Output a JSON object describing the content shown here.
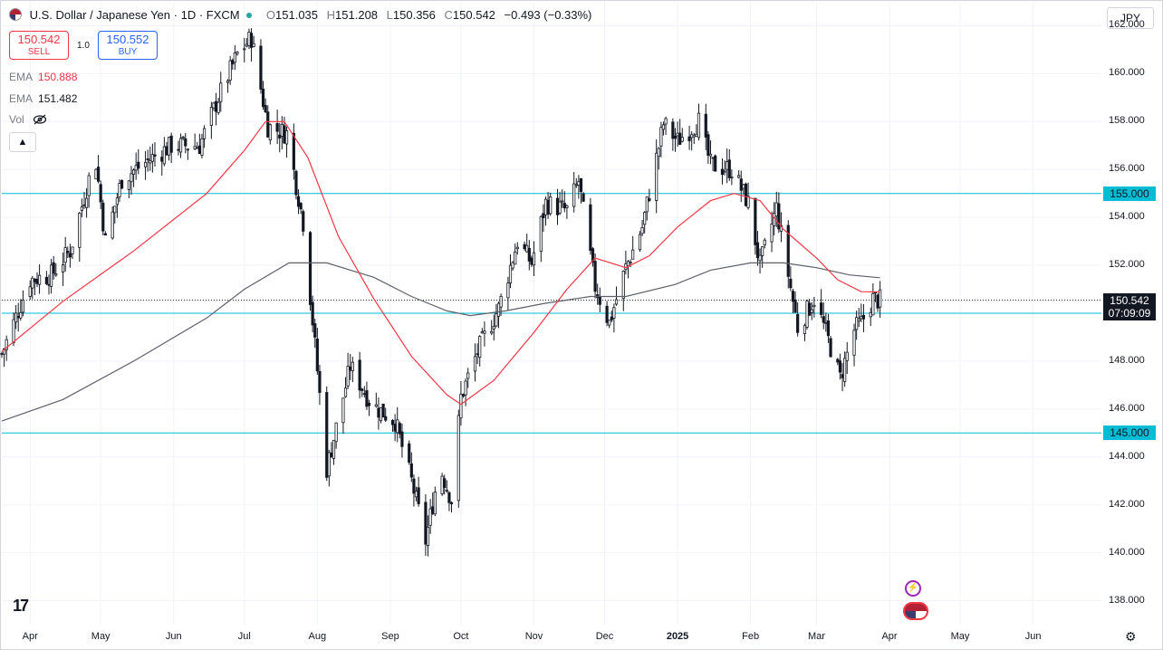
{
  "header": {
    "symbol": "U.S. Dollar / Japanese Yen",
    "interval": "1D",
    "exchange": "FXCM",
    "open_label": "O",
    "open": "151.035",
    "high_label": "H",
    "high": "151.208",
    "low_label": "L",
    "low": "150.356",
    "close_label": "C",
    "close": "150.542",
    "change": "−0.493 (−0.33%)"
  },
  "trade": {
    "sell_price": "150.542",
    "sell_label": "SELL",
    "buy_price": "150.552",
    "buy_label": "BUY",
    "spread": "1.0"
  },
  "indicators": {
    "ema1_label": "EMA",
    "ema1_value": "150.888",
    "ema2_label": "EMA",
    "ema2_value": "151.482",
    "vol_label": "Vol"
  },
  "currency": "JPY",
  "last_price": {
    "value": "150.542",
    "countdown": "07:09:09"
  },
  "colors": {
    "up": "#131722",
    "down": "#131722",
    "ema_fast": "#f23645",
    "ema_slow": "#5d606b",
    "hline": "#00bcd4",
    "background": "#ffffff"
  },
  "icons": [
    "us-flag-icon",
    "eye-off-icon",
    "chevron-up-icon",
    "tradingview-logo-icon",
    "settings-icon",
    "lightning-icon",
    "us-flag-event-icon"
  ],
  "chart_data": {
    "type": "candlestick",
    "instrument": "USD/JPY",
    "ylim": [
      137,
      163
    ],
    "y_ticks": [
      "138.000",
      "140.000",
      "142.000",
      "144.000",
      "146.000",
      "148.000",
      "150.000",
      "152.000",
      "154.000",
      "156.000",
      "158.000",
      "160.000",
      "162.000"
    ],
    "x_tick_labels": [
      "Apr",
      "May",
      "Jun",
      "Jul",
      "Aug",
      "Sep",
      "Oct",
      "Nov",
      "Dec",
      "2025",
      "Feb",
      "Mar",
      "Apr",
      "May",
      "Jun"
    ],
    "x_ticks": [
      "2024-04-01",
      "2024-05-01",
      "2024-06-01",
      "2024-07-01",
      "2024-08-01",
      "2024-09-01",
      "2024-10-01",
      "2024-11-01",
      "2024-12-01",
      "2025-01-01",
      "2025-02-01",
      "2025-03-01",
      "2025-04-01",
      "2025-05-01",
      "2025-06-01"
    ],
    "x_range": [
      "2024-03-20",
      "2025-06-30"
    ],
    "horizontal_levels": [
      {
        "label": "155.000",
        "value": 155.0
      },
      {
        "label": "150.000",
        "value": 150.0
      },
      {
        "label": "145.000",
        "value": 145.0
      }
    ],
    "close_path": [
      [
        "2024-03-20",
        148.3
      ],
      [
        "2024-04-01",
        151.4
      ],
      [
        "2024-04-10",
        151.6
      ],
      [
        "2024-04-18",
        152.6
      ],
      [
        "2024-04-26",
        155.6
      ],
      [
        "2024-04-29",
        156.3
      ],
      [
        "2024-05-03",
        153.0
      ],
      [
        "2024-05-10",
        155.6
      ],
      [
        "2024-05-20",
        156.3
      ],
      [
        "2024-05-31",
        157.0
      ],
      [
        "2024-06-12",
        157.0
      ],
      [
        "2024-06-20",
        159.0
      ],
      [
        "2024-06-28",
        160.8
      ],
      [
        "2024-07-04",
        161.5
      ],
      [
        "2024-07-11",
        157.8
      ],
      [
        "2024-07-19",
        157.5
      ],
      [
        "2024-07-26",
        153.8
      ],
      [
        "2024-08-05",
        143.5
      ],
      [
        "2024-08-15",
        147.8
      ],
      [
        "2024-08-24",
        146.2
      ],
      [
        "2024-09-03",
        145.5
      ],
      [
        "2024-09-10",
        143.0
      ],
      [
        "2024-09-16",
        140.5
      ],
      [
        "2024-09-22",
        143.6
      ],
      [
        "2024-09-27",
        142.2
      ],
      [
        "2024-10-01",
        146.5
      ],
      [
        "2024-10-08",
        148.4
      ],
      [
        "2024-10-17",
        150.2
      ],
      [
        "2024-10-25",
        153.0
      ],
      [
        "2024-10-31",
        152.1
      ],
      [
        "2024-11-06",
        154.6
      ],
      [
        "2024-11-15",
        154.3
      ],
      [
        "2024-11-20",
        155.5
      ],
      [
        "2024-11-27",
        151.1
      ],
      [
        "2024-12-03",
        149.6
      ],
      [
        "2024-12-10",
        151.9
      ],
      [
        "2024-12-17",
        153.6
      ],
      [
        "2024-12-26",
        157.9
      ],
      [
        "2025-01-01",
        157.2
      ],
      [
        "2025-01-10",
        158.0
      ],
      [
        "2025-01-15",
        156.2
      ],
      [
        "2025-01-24",
        156.0
      ],
      [
        "2025-01-31",
        154.6
      ],
      [
        "2025-02-05",
        152.0
      ],
      [
        "2025-02-12",
        154.4
      ],
      [
        "2025-02-21",
        149.4
      ],
      [
        "2025-02-28",
        150.6
      ],
      [
        "2025-03-05",
        149.2
      ],
      [
        "2025-03-11",
        147.3
      ],
      [
        "2025-03-17",
        149.3
      ],
      [
        "2025-03-20",
        149.6
      ],
      [
        "2025-03-25",
        150.6
      ],
      [
        "2025-03-28",
        150.54
      ]
    ],
    "ema_fast": [
      [
        "2024-03-20",
        148.4
      ],
      [
        "2024-04-15",
        150.5
      ],
      [
        "2024-05-15",
        152.6
      ],
      [
        "2024-06-15",
        155.0
      ],
      [
        "2024-07-01",
        156.8
      ],
      [
        "2024-07-10",
        158.0
      ],
      [
        "2024-07-18",
        158.0
      ],
      [
        "2024-07-28",
        156.5
      ],
      [
        "2024-08-10",
        153.2
      ],
      [
        "2024-08-25",
        150.6
      ],
      [
        "2024-09-10",
        148.2
      ],
      [
        "2024-09-25",
        146.6
      ],
      [
        "2024-10-01",
        146.2
      ],
      [
        "2024-10-15",
        147.2
      ],
      [
        "2024-11-01",
        149.2
      ],
      [
        "2024-11-15",
        151.0
      ],
      [
        "2024-11-27",
        152.3
      ],
      [
        "2024-12-10",
        151.9
      ],
      [
        "2024-12-20",
        152.4
      ],
      [
        "2025-01-01",
        153.6
      ],
      [
        "2025-01-15",
        154.7
      ],
      [
        "2025-01-25",
        155.0
      ],
      [
        "2025-02-05",
        154.7
      ],
      [
        "2025-02-15",
        153.5
      ],
      [
        "2025-03-01",
        152.3
      ],
      [
        "2025-03-10",
        151.4
      ],
      [
        "2025-03-20",
        150.9
      ],
      [
        "2025-03-28",
        150.888
      ]
    ],
    "ema_slow": [
      [
        "2024-03-20",
        145.5
      ],
      [
        "2024-04-15",
        146.4
      ],
      [
        "2024-05-15",
        148.0
      ],
      [
        "2024-06-15",
        149.8
      ],
      [
        "2024-07-01",
        151.0
      ],
      [
        "2024-07-20",
        152.1
      ],
      [
        "2024-08-05",
        152.1
      ],
      [
        "2024-08-25",
        151.5
      ],
      [
        "2024-09-10",
        150.7
      ],
      [
        "2024-09-25",
        150.1
      ],
      [
        "2024-10-05",
        149.9
      ],
      [
        "2024-10-20",
        150.1
      ],
      [
        "2024-11-05",
        150.4
      ],
      [
        "2024-11-25",
        150.7
      ],
      [
        "2024-12-10",
        150.7
      ],
      [
        "2024-12-31",
        151.2
      ],
      [
        "2025-01-15",
        151.8
      ],
      [
        "2025-02-01",
        152.1
      ],
      [
        "2025-02-15",
        152.1
      ],
      [
        "2025-03-01",
        151.9
      ],
      [
        "2025-03-15",
        151.6
      ],
      [
        "2025-03-28",
        151.482
      ]
    ]
  }
}
